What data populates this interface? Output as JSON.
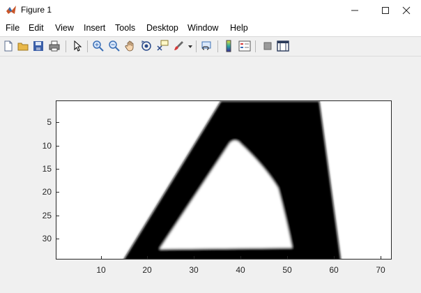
{
  "window": {
    "title": "Figure 1",
    "minimize_glyph": "—",
    "maximize_glyph": "☐",
    "close_glyph": "✕"
  },
  "menu": {
    "items": [
      "File",
      "Edit",
      "View",
      "Insert",
      "Tools",
      "Desktop",
      "Window",
      "Help"
    ]
  },
  "toolbar": {
    "icons": [
      "new-figure-icon",
      "open-file-icon",
      "save-icon",
      "print-icon",
      "pointer-icon",
      "zoom-in-icon",
      "zoom-out-icon",
      "pan-icon",
      "rotate-3d-icon",
      "data-cursor-icon",
      "brush-icon",
      "link-plot-icon",
      "colorbar-icon",
      "legend-icon",
      "hide-plot-tools-icon",
      "show-plot-tools-icon"
    ]
  },
  "axes": {
    "y_ticks": [
      "5",
      "10",
      "15",
      "20",
      "25",
      "30"
    ],
    "x_ticks": [
      "10",
      "20",
      "30",
      "40",
      "50",
      "60",
      "70"
    ],
    "x_range": [
      0.5,
      72.5
    ],
    "y_range": [
      0.5,
      34.5
    ]
  },
  "image": {
    "description_type": "grayscale-image",
    "content": "triangle outline stroke"
  }
}
